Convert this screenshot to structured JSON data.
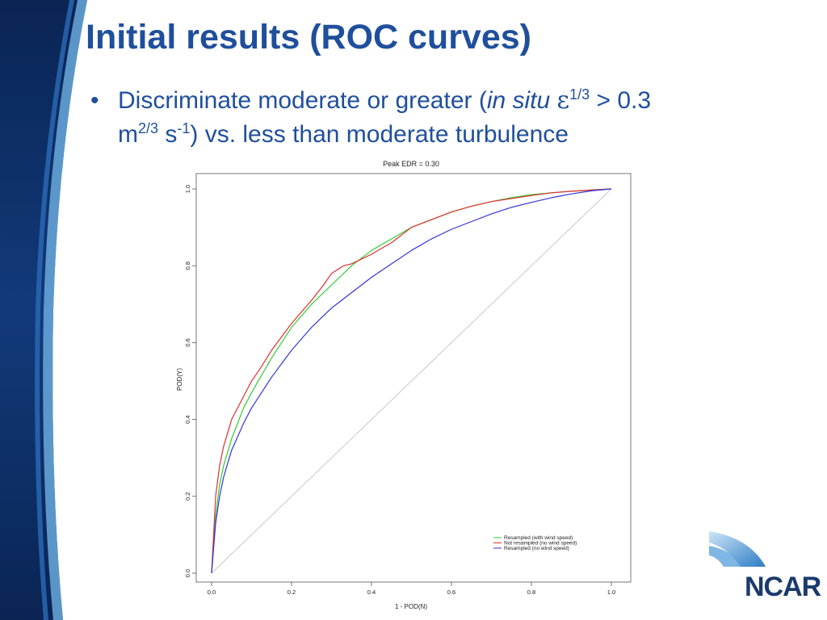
{
  "slide": {
    "title": "Initial results (ROC curves)",
    "bullet": {
      "marker": "•",
      "text_a": "Discriminate moderate or greater (",
      "italic": "in situ",
      "epsilon": "ε",
      "exp_1": "1/3",
      "text_b": " > 0.3",
      "unit_m": "m",
      "exp_2": "2/3",
      "unit_s": " s",
      "exp_3": "-1",
      "text_c": ") vs. less than moderate turbulence"
    },
    "logo": "NCAR",
    "colors": {
      "title": "#1f4f9c",
      "band_dark": "#0d2a5c",
      "band_light": "#6aa9dc"
    }
  },
  "chart_data": {
    "type": "line",
    "title": "Peak EDR = 0.30",
    "xlabel": "1 - POD(N)",
    "ylabel": "POD(Y)",
    "xlim": [
      0,
      1
    ],
    "ylim": [
      0,
      1
    ],
    "xticks": [
      "0.0",
      "0.2",
      "0.4",
      "0.6",
      "0.8",
      "1.0"
    ],
    "yticks": [
      "0.0",
      "0.2",
      "0.4",
      "0.6",
      "0.8",
      "1.0"
    ],
    "grid": false,
    "legend_position": "bottom-right",
    "reference_line": {
      "x": [
        0,
        1
      ],
      "y": [
        0,
        1
      ],
      "color": "#c8c8c8"
    },
    "series": [
      {
        "name": "Resampled (with wind speed)",
        "color": "#33cc33",
        "x": [
          0,
          0.01,
          0.02,
          0.03,
          0.05,
          0.08,
          0.1,
          0.15,
          0.2,
          0.25,
          0.3,
          0.35,
          0.4,
          0.45,
          0.5,
          0.55,
          0.6,
          0.65,
          0.7,
          0.75,
          0.8,
          0.85,
          0.9,
          0.95,
          1.0
        ],
        "y": [
          0,
          0.15,
          0.23,
          0.28,
          0.35,
          0.43,
          0.47,
          0.56,
          0.64,
          0.7,
          0.75,
          0.8,
          0.84,
          0.87,
          0.9,
          0.92,
          0.94,
          0.955,
          0.967,
          0.977,
          0.985,
          0.99,
          0.994,
          0.997,
          1.0
        ]
      },
      {
        "name": "Not resampled (no wind speed)",
        "color": "#e03030",
        "x": [
          0,
          0.01,
          0.02,
          0.03,
          0.05,
          0.08,
          0.1,
          0.12,
          0.15,
          0.2,
          0.25,
          0.28,
          0.3,
          0.33,
          0.35,
          0.4,
          0.45,
          0.5,
          0.55,
          0.6,
          0.65,
          0.7,
          0.75,
          0.8,
          0.85,
          0.9,
          0.95,
          1.0
        ],
        "y": [
          0,
          0.2,
          0.28,
          0.33,
          0.4,
          0.46,
          0.5,
          0.53,
          0.58,
          0.65,
          0.71,
          0.75,
          0.78,
          0.8,
          0.805,
          0.83,
          0.86,
          0.9,
          0.92,
          0.94,
          0.955,
          0.967,
          0.975,
          0.983,
          0.99,
          0.994,
          0.997,
          1.0
        ]
      },
      {
        "name": "Resampled (no wind speed)",
        "color": "#3333dd",
        "x": [
          0,
          0.01,
          0.02,
          0.03,
          0.05,
          0.08,
          0.1,
          0.15,
          0.2,
          0.25,
          0.3,
          0.35,
          0.4,
          0.45,
          0.5,
          0.55,
          0.6,
          0.65,
          0.7,
          0.75,
          0.8,
          0.85,
          0.9,
          0.95,
          1.0
        ],
        "y": [
          0,
          0.13,
          0.2,
          0.25,
          0.32,
          0.39,
          0.43,
          0.51,
          0.58,
          0.64,
          0.69,
          0.73,
          0.77,
          0.805,
          0.84,
          0.87,
          0.895,
          0.915,
          0.935,
          0.952,
          0.965,
          0.977,
          0.987,
          0.995,
          1.0
        ]
      }
    ]
  }
}
